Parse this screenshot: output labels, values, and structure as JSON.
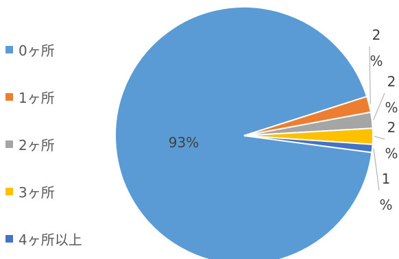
{
  "chart_data": {
    "type": "pie",
    "title": "",
    "slices": [
      {
        "label": "0ヶ所",
        "value": 93,
        "color": "#5B9BD5",
        "data_label": "93%"
      },
      {
        "label": "1ヶ所",
        "value": 2,
        "color": "#ED7D31",
        "data_label": "2%"
      },
      {
        "label": "2ヶ所",
        "value": 2,
        "color": "#A5A5A5",
        "data_label": "2%"
      },
      {
        "label": "3ヶ所",
        "value": 2,
        "color": "#FFC000",
        "data_label": "2%"
      },
      {
        "label": "4ヶ所以上",
        "value": 1,
        "color": "#4472C4",
        "data_label": "1%"
      }
    ],
    "legend_position": "left"
  }
}
